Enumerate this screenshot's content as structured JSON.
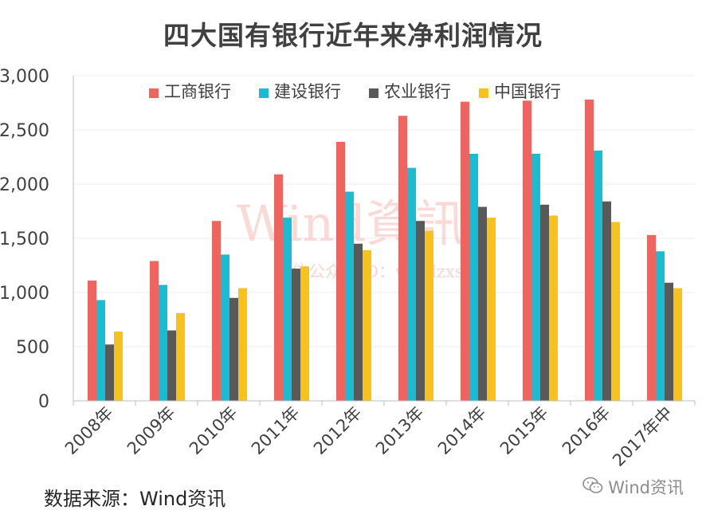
{
  "title": "四大国有银行近年来净利润情况",
  "source_note": "数据来源：Wind资讯",
  "watermark": {
    "main": "Wind資訊",
    "sub": "微信公众号ID：windzxsh"
  },
  "brand": {
    "label": "Wind资讯",
    "icon": "wechat-icon"
  },
  "colors": {
    "工商银行": "#F0645F",
    "建设银行": "#1BBCD1",
    "农业银行": "#595959",
    "中国银行": "#F8C21C"
  },
  "chart_data": {
    "type": "bar",
    "title": "四大国有银行近年来净利润情况",
    "xlabel": "",
    "ylabel": "",
    "ylim": [
      0,
      3000
    ],
    "yticks": [
      0,
      500,
      1000,
      1500,
      2000,
      2500,
      3000
    ],
    "ytick_labels": [
      "0",
      "500",
      "1,000",
      "1,500",
      "2,000",
      "2,500",
      "3,000"
    ],
    "grid": true,
    "legend_position": "top-center",
    "categories": [
      "2008年",
      "2009年",
      "2010年",
      "2011年",
      "2012年",
      "2013年",
      "2014年",
      "2015年",
      "2016年",
      "2017年中"
    ],
    "series": [
      {
        "name": "工商银行",
        "color": "#F0645F",
        "values": [
          1110,
          1290,
          1660,
          2090,
          2390,
          2630,
          2760,
          2770,
          2780,
          1530
        ]
      },
      {
        "name": "建设银行",
        "color": "#1BBCD1",
        "values": [
          930,
          1070,
          1350,
          1690,
          1930,
          2150,
          2280,
          2280,
          2310,
          1380
        ]
      },
      {
        "name": "农业银行",
        "color": "#595959",
        "values": [
          520,
          650,
          950,
          1220,
          1450,
          1660,
          1790,
          1810,
          1840,
          1090
        ]
      },
      {
        "name": "中国银行",
        "color": "#F8C21C",
        "values": [
          640,
          810,
          1040,
          1240,
          1390,
          1570,
          1690,
          1710,
          1650,
          1040
        ]
      }
    ]
  }
}
